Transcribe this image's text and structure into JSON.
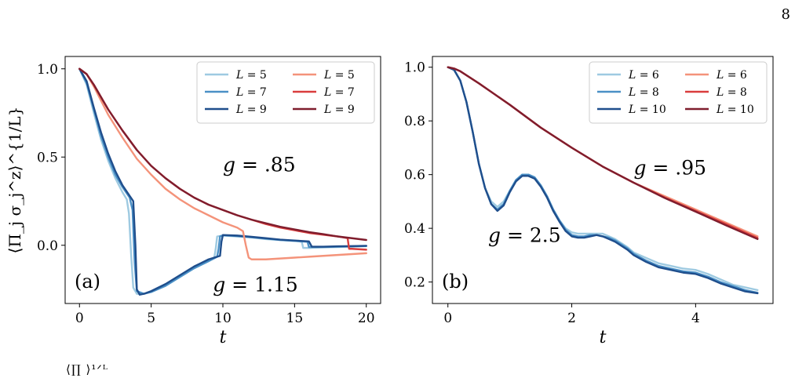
{
  "page": {
    "number": "8",
    "caption_fragment": "⟨∏ ⟩¹ᐟᴸ"
  },
  "chart_data": [
    {
      "type": "line",
      "panel_label": "(a)",
      "xlabel": "t",
      "ylabel": "⟨Π_j σ_j^z⟩^{1/L}",
      "xlim": [
        -1,
        21
      ],
      "ylim": [
        -0.33,
        1.07
      ],
      "xticks": [
        0,
        5,
        10,
        15,
        20
      ],
      "yticks": [
        0.0,
        0.5,
        1.0
      ],
      "xtick_labels": [
        "0",
        "5",
        "10",
        "15",
        "20"
      ],
      "ytick_labels": [
        "0.0",
        "0.5",
        "1.0"
      ],
      "legend_position": "top-right",
      "legend": {
        "col1": [
          "L = 5",
          "L = 7",
          "L = 9"
        ],
        "col2": [
          "L = 5",
          "L = 7",
          "L = 9"
        ]
      },
      "annotations": [
        {
          "text": "g = .85",
          "x": 10.0,
          "y": 0.42
        },
        {
          "text": "g = 1.15",
          "x": 9.3,
          "y": -0.26
        }
      ],
      "series": [
        {
          "name": "L = 5",
          "color": "#9ecae1",
          "x": [
            0,
            0.5,
            1,
            1.5,
            2,
            2.5,
            3,
            3.3,
            3.45,
            3.6,
            3.75,
            4,
            4.5,
            5,
            6,
            7,
            8,
            9,
            9.4,
            9.5,
            9.6,
            10,
            11,
            12,
            13,
            14,
            15,
            15.5,
            15.6,
            16,
            17,
            18,
            19,
            20
          ],
          "y": [
            1,
            0.91,
            0.75,
            0.6,
            0.48,
            0.38,
            0.3,
            0.26,
            0.18,
            -0.05,
            -0.24,
            -0.275,
            -0.275,
            -0.26,
            -0.22,
            -0.17,
            -0.13,
            -0.09,
            -0.07,
            -0.02,
            0.05,
            0.055,
            0.05,
            0.045,
            0.035,
            0.03,
            0.025,
            0.02,
            -0.015,
            -0.015,
            -0.012,
            -0.01,
            -0.008,
            -0.005
          ]
        },
        {
          "name": "L = 7",
          "color": "#4a90c6",
          "x": [
            0,
            0.5,
            1,
            1.5,
            2,
            2.5,
            3,
            3.5,
            3.7,
            3.85,
            4,
            4.5,
            5,
            6,
            7,
            8,
            9,
            9.6,
            9.7,
            9.8,
            10,
            11,
            12,
            13,
            14,
            15,
            15.9,
            16,
            17,
            18,
            19,
            20
          ],
          "y": [
            1,
            0.92,
            0.77,
            0.62,
            0.5,
            0.4,
            0.33,
            0.27,
            0.2,
            -0.1,
            -0.26,
            -0.275,
            -0.265,
            -0.23,
            -0.18,
            -0.13,
            -0.09,
            -0.065,
            -0.02,
            0.05,
            0.057,
            0.052,
            0.045,
            0.038,
            0.03,
            0.025,
            0.02,
            -0.01,
            -0.01,
            -0.008,
            -0.006,
            -0.004
          ]
        },
        {
          "name": "L = 9",
          "color": "#1f4e8c",
          "x": [
            0,
            0.5,
            1,
            1.5,
            2,
            2.5,
            3,
            3.5,
            3.75,
            3.9,
            4,
            4.2,
            4.5,
            5,
            6,
            7,
            8,
            9,
            9.8,
            9.9,
            10,
            11,
            12,
            13,
            14,
            15,
            16,
            16.2,
            17,
            18,
            19,
            20
          ],
          "y": [
            1,
            0.93,
            0.78,
            0.64,
            0.52,
            0.42,
            0.34,
            0.28,
            0.25,
            0.0,
            -0.25,
            -0.28,
            -0.275,
            -0.26,
            -0.22,
            -0.17,
            -0.12,
            -0.08,
            -0.06,
            0.02,
            0.058,
            0.055,
            0.048,
            0.04,
            0.032,
            0.027,
            0.022,
            -0.008,
            -0.008,
            -0.006,
            -0.005,
            -0.003
          ]
        },
        {
          "name": "L = 5",
          "color": "#f4937a",
          "x": [
            0,
            0.5,
            1,
            1.5,
            2,
            3,
            4,
            5,
            6,
            7,
            8,
            9,
            10,
            11,
            11.4,
            11.6,
            11.8,
            12,
            13,
            14,
            15,
            16,
            17,
            18,
            19,
            20
          ],
          "y": [
            1,
            0.97,
            0.9,
            0.82,
            0.74,
            0.61,
            0.49,
            0.4,
            0.32,
            0.26,
            0.21,
            0.17,
            0.13,
            0.1,
            0.08,
            0.0,
            -0.07,
            -0.08,
            -0.08,
            -0.075,
            -0.07,
            -0.065,
            -0.06,
            -0.055,
            -0.05,
            -0.045
          ]
        },
        {
          "name": "L = 7",
          "color": "#d93d3d",
          "x": [
            0,
            0.5,
            1,
            1.5,
            2,
            3,
            4,
            5,
            6,
            7,
            8,
            9,
            10,
            11,
            12,
            13,
            14,
            15,
            16,
            17,
            18,
            18.7,
            18.8,
            19,
            20
          ],
          "y": [
            1,
            0.97,
            0.91,
            0.84,
            0.77,
            0.65,
            0.54,
            0.45,
            0.38,
            0.32,
            0.27,
            0.23,
            0.2,
            0.17,
            0.145,
            0.12,
            0.1,
            0.085,
            0.07,
            0.06,
            0.05,
            0.04,
            -0.02,
            -0.02,
            -0.025
          ]
        },
        {
          "name": "L = 9",
          "color": "#7f1d2d",
          "x": [
            0,
            0.5,
            1,
            1.5,
            2,
            3,
            4,
            5,
            6,
            7,
            8,
            9,
            10,
            11,
            12,
            13,
            14,
            15,
            16,
            17,
            18,
            19,
            20
          ],
          "y": [
            1,
            0.97,
            0.91,
            0.84,
            0.77,
            0.65,
            0.54,
            0.45,
            0.38,
            0.32,
            0.27,
            0.23,
            0.2,
            0.17,
            0.145,
            0.125,
            0.105,
            0.09,
            0.075,
            0.063,
            0.05,
            0.04,
            0.03
          ]
        }
      ]
    },
    {
      "type": "line",
      "panel_label": "(b)",
      "xlabel": "t",
      "ylabel": "",
      "xlim": [
        -0.25,
        5.25
      ],
      "ylim": [
        0.12,
        1.04
      ],
      "xticks": [
        0,
        2,
        4
      ],
      "yticks": [
        0.2,
        0.4,
        0.6,
        0.8,
        1.0
      ],
      "xtick_labels": [
        "0",
        "2",
        "4"
      ],
      "ytick_labels": [
        "0.2",
        "0.4",
        "0.6",
        "0.8",
        "1.0"
      ],
      "legend_position": "top-right",
      "legend": {
        "col1": [
          "L = 6",
          "L = 8",
          "L = 10"
        ],
        "col2": [
          "L = 6",
          "L = 8",
          "L = 10"
        ]
      },
      "annotations": [
        {
          "text": "g = .95",
          "x": 3.0,
          "y": 0.6
        },
        {
          "text": "g = 2.5",
          "x": 0.65,
          "y": 0.35
        }
      ],
      "series": [
        {
          "name": "L = 6",
          "color": "#9ecae1",
          "x": [
            0,
            0.1,
            0.2,
            0.3,
            0.4,
            0.5,
            0.6,
            0.7,
            0.8,
            0.9,
            1.0,
            1.1,
            1.2,
            1.3,
            1.4,
            1.5,
            1.6,
            1.7,
            1.8,
            1.9,
            2.0,
            2.1,
            2.2,
            2.3,
            2.4,
            2.5,
            2.6,
            2.7,
            2.8,
            2.9,
            3.0,
            3.2,
            3.4,
            3.6,
            3.8,
            4.0,
            4.2,
            4.4,
            4.6,
            4.8,
            5.0
          ],
          "y": [
            1,
            0.99,
            0.95,
            0.87,
            0.76,
            0.64,
            0.55,
            0.5,
            0.48,
            0.5,
            0.54,
            0.58,
            0.6,
            0.6,
            0.59,
            0.56,
            0.52,
            0.47,
            0.43,
            0.4,
            0.385,
            0.38,
            0.38,
            0.38,
            0.38,
            0.38,
            0.37,
            0.36,
            0.345,
            0.33,
            0.31,
            0.29,
            0.27,
            0.26,
            0.25,
            0.245,
            0.23,
            0.21,
            0.19,
            0.18,
            0.17
          ]
        },
        {
          "name": "L = 8",
          "color": "#4a90c6",
          "x": [
            0,
            0.1,
            0.2,
            0.3,
            0.4,
            0.5,
            0.6,
            0.7,
            0.8,
            0.9,
            1.0,
            1.1,
            1.2,
            1.3,
            1.4,
            1.5,
            1.6,
            1.7,
            1.8,
            1.9,
            2.0,
            2.1,
            2.2,
            2.3,
            2.4,
            2.5,
            2.6,
            2.7,
            2.8,
            2.9,
            3.0,
            3.2,
            3.4,
            3.6,
            3.8,
            4.0,
            4.2,
            4.4,
            4.6,
            4.8,
            5.0
          ],
          "y": [
            1,
            0.99,
            0.95,
            0.87,
            0.76,
            0.64,
            0.55,
            0.49,
            0.47,
            0.49,
            0.54,
            0.58,
            0.6,
            0.6,
            0.59,
            0.56,
            0.52,
            0.47,
            0.43,
            0.395,
            0.375,
            0.37,
            0.37,
            0.375,
            0.375,
            0.37,
            0.365,
            0.355,
            0.34,
            0.325,
            0.305,
            0.28,
            0.26,
            0.25,
            0.24,
            0.235,
            0.22,
            0.2,
            0.185,
            0.17,
            0.16
          ]
        },
        {
          "name": "L = 10",
          "color": "#1f4e8c",
          "x": [
            0,
            0.1,
            0.2,
            0.3,
            0.4,
            0.5,
            0.6,
            0.7,
            0.8,
            0.9,
            1.0,
            1.1,
            1.2,
            1.3,
            1.4,
            1.5,
            1.6,
            1.7,
            1.8,
            1.9,
            2.0,
            2.1,
            2.2,
            2.3,
            2.4,
            2.5,
            2.6,
            2.7,
            2.8,
            2.9,
            3.0,
            3.2,
            3.4,
            3.6,
            3.8,
            4.0,
            4.2,
            4.4,
            4.6,
            4.8,
            5.0
          ],
          "y": [
            1,
            0.99,
            0.95,
            0.87,
            0.76,
            0.64,
            0.55,
            0.49,
            0.465,
            0.485,
            0.535,
            0.575,
            0.595,
            0.595,
            0.585,
            0.555,
            0.515,
            0.465,
            0.425,
            0.39,
            0.37,
            0.365,
            0.365,
            0.37,
            0.375,
            0.37,
            0.36,
            0.35,
            0.335,
            0.32,
            0.3,
            0.275,
            0.255,
            0.245,
            0.235,
            0.23,
            0.215,
            0.195,
            0.18,
            0.165,
            0.158
          ]
        },
        {
          "name": "L = 6",
          "color": "#f4937a",
          "x": [
            0,
            0.1,
            0.2,
            0.3,
            0.5,
            0.75,
            1.0,
            1.5,
            2.0,
            2.5,
            3.0,
            3.5,
            4.0,
            4.5,
            5.0
          ],
          "y": [
            1,
            0.995,
            0.985,
            0.97,
            0.94,
            0.9,
            0.86,
            0.775,
            0.7,
            0.63,
            0.57,
            0.52,
            0.47,
            0.42,
            0.37
          ]
        },
        {
          "name": "L = 8",
          "color": "#d93d3d",
          "x": [
            0,
            0.1,
            0.2,
            0.3,
            0.5,
            0.75,
            1.0,
            1.5,
            2.0,
            2.5,
            3.0,
            3.5,
            4.0,
            4.5,
            5.0
          ],
          "y": [
            1,
            0.995,
            0.985,
            0.97,
            0.94,
            0.9,
            0.86,
            0.775,
            0.7,
            0.63,
            0.57,
            0.515,
            0.465,
            0.415,
            0.364
          ]
        },
        {
          "name": "L = 10",
          "color": "#7f1d2d",
          "x": [
            0,
            0.1,
            0.2,
            0.3,
            0.5,
            0.75,
            1.0,
            1.5,
            2.0,
            2.5,
            3.0,
            3.5,
            4.0,
            4.5,
            5.0
          ],
          "y": [
            1,
            0.995,
            0.985,
            0.97,
            0.94,
            0.9,
            0.86,
            0.775,
            0.7,
            0.63,
            0.57,
            0.513,
            0.462,
            0.41,
            0.36
          ]
        }
      ]
    }
  ]
}
